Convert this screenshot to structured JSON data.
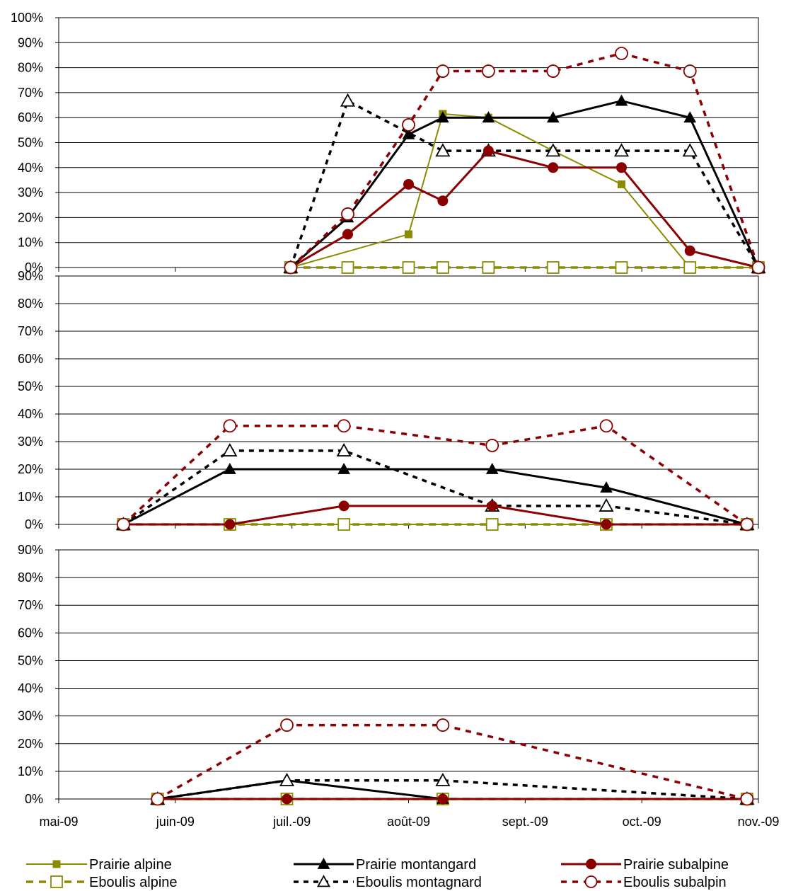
{
  "chart_data": {
    "type": "line",
    "x_axis": {
      "tick_labels": [
        "mai-09",
        "juin-09",
        "juil.-09",
        "août-09",
        "sept.-09",
        "oct.-09",
        "nov.-09"
      ],
      "range": [
        "2009-05-01",
        "2009-11-01"
      ]
    },
    "panels": [
      {
        "y_ticks": [
          "0%",
          "10%",
          "20%",
          "30%",
          "40%",
          "50%",
          "60%",
          "70%",
          "80%",
          "90%",
          "100%"
        ],
        "ylim": [
          0,
          100
        ],
        "series": [
          {
            "name": "Prairie alpine",
            "style": "prairie-alpine",
            "points": [
              [
                "2009-07-01",
                0
              ],
              [
                "2009-08-01",
                13.3
              ],
              [
                "2009-08-10",
                61.5
              ],
              [
                "2009-08-22",
                60
              ],
              [
                "2009-09-08",
                46.7
              ],
              [
                "2009-09-26",
                33.3
              ],
              [
                "2009-10-14",
                0
              ],
              [
                "2009-11-01",
                0
              ]
            ]
          },
          {
            "name": "Prairie montangard",
            "style": "prairie-montangard",
            "points": [
              [
                "2009-07-01",
                0
              ],
              [
                "2009-07-16",
                20
              ],
              [
                "2009-08-01",
                53.3
              ],
              [
                "2009-08-10",
                60
              ],
              [
                "2009-08-22",
                60
              ],
              [
                "2009-09-08",
                60
              ],
              [
                "2009-09-26",
                66.7
              ],
              [
                "2009-10-14",
                60
              ],
              [
                "2009-11-01",
                0
              ]
            ]
          },
          {
            "name": "Prairie subalpine",
            "style": "prairie-subalpine",
            "points": [
              [
                "2009-07-01",
                0
              ],
              [
                "2009-07-16",
                13.3
              ],
              [
                "2009-08-01",
                33.3
              ],
              [
                "2009-08-10",
                26.7
              ],
              [
                "2009-08-22",
                46.7
              ],
              [
                "2009-09-08",
                40
              ],
              [
                "2009-09-26",
                40
              ],
              [
                "2009-10-14",
                6.7
              ],
              [
                "2009-11-01",
                0
              ]
            ]
          },
          {
            "name": "Eboulis alpine",
            "style": "eboulis-alpine",
            "points": [
              [
                "2009-07-01",
                0
              ],
              [
                "2009-07-16",
                0
              ],
              [
                "2009-08-01",
                0
              ],
              [
                "2009-08-10",
                0
              ],
              [
                "2009-08-22",
                0
              ],
              [
                "2009-09-08",
                0
              ],
              [
                "2009-09-26",
                0
              ],
              [
                "2009-10-14",
                0
              ],
              [
                "2009-11-01",
                0
              ]
            ]
          },
          {
            "name": "Eboulis montagnard",
            "style": "eboulis-montagnard",
            "points": [
              [
                "2009-07-01",
                0
              ],
              [
                "2009-07-16",
                66.7
              ],
              [
                "2009-08-10",
                46.7
              ],
              [
                "2009-08-22",
                46.7
              ],
              [
                "2009-09-08",
                46.7
              ],
              [
                "2009-09-26",
                46.7
              ],
              [
                "2009-10-14",
                46.7
              ],
              [
                "2009-11-01",
                0
              ]
            ]
          },
          {
            "name": "Eboulis subalpin",
            "style": "eboulis-subalpin",
            "points": [
              [
                "2009-07-01",
                0
              ],
              [
                "2009-07-16",
                21.4
              ],
              [
                "2009-08-01",
                57.1
              ],
              [
                "2009-08-10",
                78.6
              ],
              [
                "2009-08-22",
                78.6
              ],
              [
                "2009-09-08",
                78.6
              ],
              [
                "2009-09-26",
                85.7
              ],
              [
                "2009-10-14",
                78.6
              ],
              [
                "2009-11-01",
                0
              ]
            ]
          }
        ]
      },
      {
        "y_ticks": [
          "0%",
          "10%",
          "20%",
          "30%",
          "40%",
          "50%",
          "60%",
          "70%",
          "80%",
          "90%"
        ],
        "ylim": [
          0,
          90
        ],
        "series": [
          {
            "name": "Prairie alpine",
            "style": "prairie-alpine",
            "points": [
              [
                "2009-05-18",
                0
              ],
              [
                "2009-06-15",
                0
              ],
              [
                "2009-07-15",
                0
              ],
              [
                "2009-08-23",
                0
              ],
              [
                "2009-09-22",
                0
              ],
              [
                "2009-10-29",
                0
              ]
            ]
          },
          {
            "name": "Prairie montangard",
            "style": "prairie-montangard",
            "points": [
              [
                "2009-05-18",
                0
              ],
              [
                "2009-06-15",
                20
              ],
              [
                "2009-07-15",
                20
              ],
              [
                "2009-08-23",
                20
              ],
              [
                "2009-09-22",
                13.3
              ],
              [
                "2009-10-29",
                0
              ]
            ]
          },
          {
            "name": "Prairie subalpine",
            "style": "prairie-subalpine",
            "points": [
              [
                "2009-05-18",
                0
              ],
              [
                "2009-06-15",
                0
              ],
              [
                "2009-07-15",
                6.7
              ],
              [
                "2009-08-23",
                6.7
              ],
              [
                "2009-09-22",
                0
              ],
              [
                "2009-10-29",
                0
              ]
            ]
          },
          {
            "name": "Eboulis alpine",
            "style": "eboulis-alpine",
            "points": [
              [
                "2009-05-18",
                0
              ],
              [
                "2009-06-15",
                0
              ],
              [
                "2009-07-15",
                0
              ],
              [
                "2009-08-23",
                0
              ],
              [
                "2009-09-22",
                0
              ],
              [
                "2009-10-29",
                0
              ]
            ]
          },
          {
            "name": "Eboulis montagnard",
            "style": "eboulis-montagnard",
            "points": [
              [
                "2009-05-18",
                0
              ],
              [
                "2009-06-15",
                26.7
              ],
              [
                "2009-07-15",
                26.7
              ],
              [
                "2009-08-23",
                6.7
              ],
              [
                "2009-09-22",
                6.7
              ],
              [
                "2009-10-29",
                0
              ]
            ]
          },
          {
            "name": "Eboulis subalpin",
            "style": "eboulis-subalpin",
            "points": [
              [
                "2009-05-18",
                0
              ],
              [
                "2009-06-15",
                35.7
              ],
              [
                "2009-07-15",
                35.7
              ],
              [
                "2009-08-23",
                28.6
              ],
              [
                "2009-09-22",
                35.7
              ],
              [
                "2009-10-29",
                0
              ]
            ]
          }
        ]
      },
      {
        "y_ticks": [
          "0%",
          "10%",
          "20%",
          "30%",
          "40%",
          "50%",
          "60%",
          "70%",
          "80%",
          "90%"
        ],
        "ylim": [
          0,
          90
        ],
        "series": [
          {
            "name": "Prairie alpine",
            "style": "prairie-alpine",
            "points": [
              [
                "2009-05-27",
                0
              ],
              [
                "2009-06-30",
                0
              ],
              [
                "2009-08-10",
                0
              ],
              [
                "2009-10-29",
                0
              ]
            ]
          },
          {
            "name": "Prairie montangard",
            "style": "prairie-montangard",
            "points": [
              [
                "2009-05-27",
                0
              ],
              [
                "2009-06-30",
                6.7
              ],
              [
                "2009-08-10",
                0
              ],
              [
                "2009-10-29",
                0
              ]
            ]
          },
          {
            "name": "Prairie subalpine",
            "style": "prairie-subalpine",
            "points": [
              [
                "2009-05-27",
                0
              ],
              [
                "2009-06-30",
                0
              ],
              [
                "2009-08-10",
                0
              ],
              [
                "2009-10-29",
                0
              ]
            ]
          },
          {
            "name": "Eboulis alpine",
            "style": "eboulis-alpine",
            "points": [
              [
                "2009-05-27",
                0
              ],
              [
                "2009-06-30",
                0
              ],
              [
                "2009-08-10",
                0
              ],
              [
                "2009-10-29",
                0
              ]
            ]
          },
          {
            "name": "Eboulis montagnard",
            "style": "eboulis-montagnard",
            "points": [
              [
                "2009-05-27",
                0
              ],
              [
                "2009-06-30",
                6.7
              ],
              [
                "2009-08-10",
                6.7
              ],
              [
                "2009-10-29",
                0
              ]
            ]
          },
          {
            "name": "Eboulis subalpin",
            "style": "eboulis-subalpin",
            "points": [
              [
                "2009-05-27",
                0
              ],
              [
                "2009-06-30",
                26.7
              ],
              [
                "2009-08-10",
                26.7
              ],
              [
                "2009-10-29",
                0
              ]
            ]
          }
        ]
      }
    ],
    "legend": {
      "placement": "bottom",
      "items": [
        {
          "label": "Prairie alpine",
          "style": "prairie-alpine"
        },
        {
          "label": "Prairie montangard",
          "style": "prairie-montangard"
        },
        {
          "label": "Prairie subalpine",
          "style": "prairie-subalpine"
        },
        {
          "label": "Eboulis alpine",
          "style": "eboulis-alpine"
        },
        {
          "label": "Eboulis montagnard",
          "style": "eboulis-montagnard"
        },
        {
          "label": "Eboulis subalpin",
          "style": "eboulis-subalpin"
        }
      ]
    },
    "grid": {
      "horizontal": true,
      "vertical": false
    },
    "colors": {
      "olive": "#8B8B00",
      "black": "#000000",
      "dark_red": "#8B0000"
    }
  }
}
